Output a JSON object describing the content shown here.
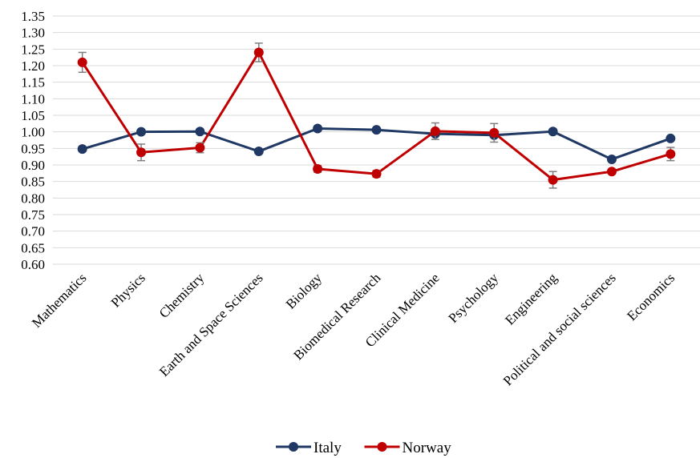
{
  "chart_data": {
    "type": "line",
    "title": "",
    "xlabel": "",
    "ylabel": "",
    "ylim": [
      0.6,
      1.35
    ],
    "ytick_step": 0.05,
    "grid": true,
    "legend_position": "bottom",
    "categories": [
      "Mathematics",
      "Physics",
      "Chemistry",
      "Earth and Space Sciences",
      "Biology",
      "Biomedical Research",
      "Clinical Medicine",
      "Psychology",
      "Engineering",
      "Political and social sciences",
      "Economics"
    ],
    "series": [
      {
        "name": "Italy",
        "color": "#1f3864",
        "values": [
          0.948,
          1.0,
          1.001,
          0.941,
          1.01,
          1.006,
          0.994,
          0.99,
          1.001,
          0.917,
          0.98
        ],
        "error": [
          0,
          0,
          0,
          0,
          0,
          0,
          0,
          0,
          0,
          0,
          0
        ]
      },
      {
        "name": "Norway",
        "color": "#c00000",
        "values": [
          1.21,
          0.938,
          0.952,
          1.24,
          0.888,
          0.873,
          1.002,
          0.997,
          0.855,
          0.88,
          0.933
        ],
        "error": [
          0.03,
          0.025,
          0.015,
          0.028,
          0.01,
          0.01,
          0.025,
          0.028,
          0.025,
          0.0,
          0.02
        ]
      }
    ]
  }
}
